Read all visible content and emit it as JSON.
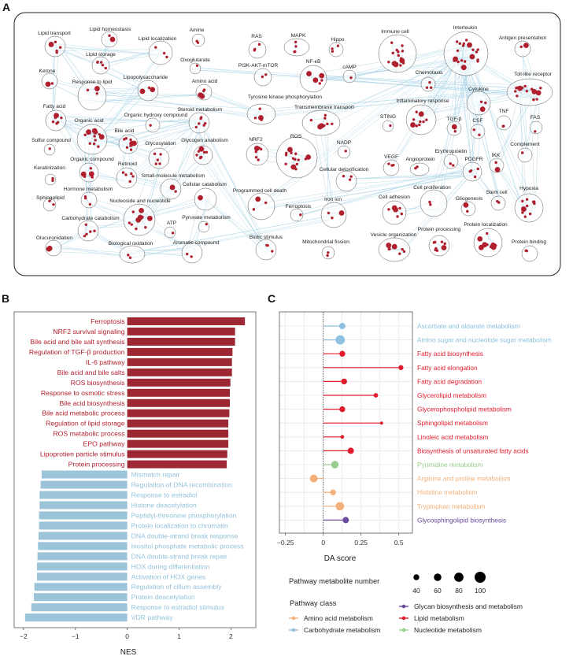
{
  "panel_labels": {
    "a": "A",
    "b": "B",
    "c": "C"
  },
  "panel_a": {
    "nodes": [
      "Lipid transport",
      "Lipid homeostasis",
      "Lipid localization",
      "Amine",
      "Lipid storage",
      "Oxoglutarate",
      "Ketone",
      "Response to lipid",
      "Lipopolysaccharide",
      "Amino acid",
      "Tyrosine kinase phosphorylation",
      "Fatty acid",
      "Organic acid",
      "Organic hydroxy compound",
      "Steroid metabolism",
      "Sulfur compound",
      "Bile acid",
      "Glycosylation",
      "Glycogen anabolism",
      "NRF2",
      "Organic compound",
      "Retinoid",
      "Keratinization",
      "Small-molecule metabolism",
      "Cellular catabolism",
      "Hormone metabolism",
      "Sphingolipid",
      "Nucleoside and nucleotide",
      "Programmed cell death",
      "Carbohydrate catabolism",
      "Pyruvate metabolism",
      "ATP",
      "Glucuronidation",
      "Biological oxidation",
      "Aromatic compound",
      "Biotic stimulus",
      "RAS",
      "PI3K-AKT-mTOR",
      "MAPK",
      "Hippo",
      "Immune cell",
      "Interleukin",
      "Antigen presentation",
      "NF-κB",
      "cAMP",
      "Chemotaxis",
      "Toll-like receptor",
      "Cytokine",
      "Transmembrane transport",
      "Inflammatory response",
      "STING",
      "TGF-β",
      "CSF",
      "TNF",
      "FAS",
      "ROS",
      "NADP",
      "Complement",
      "Erythropoietin",
      "IKK",
      "VEGF",
      "Angioprotein",
      "PDGFR",
      "Cellular detoxification",
      "Cell proliferation",
      "Stem cell",
      "Hypoxia",
      "Iron ion",
      "Ferroptosis",
      "Cell adhesion",
      "Gliogenesis",
      "Mitochondrial fission",
      "Vesicle organization",
      "Protein processing",
      "Protein localization",
      "Protein binding"
    ],
    "colors": {
      "node": "#b01f2e",
      "edge": "#a9d3e6",
      "cluster": "#555555"
    }
  },
  "chart_data": [
    {
      "type": "bar",
      "orientation": "horizontal",
      "xlabel": "NES",
      "xlim": [
        -2.18,
        2.48
      ],
      "xticks": [
        -2,
        -1,
        0,
        1,
        2
      ],
      "xtick_labels": [
        "−2",
        "−1",
        "0",
        "1",
        "2"
      ],
      "categories": [
        "Ferroptosis",
        "NRF2 survival signaling",
        "Bile acid and bile salt synthesis",
        "Regulation of TGF-β production",
        "IL-6  pathway",
        "Bile acid and bile salts",
        "ROS biosynthesis",
        "Response to osmotic stress",
        "Bile acid biosynthesis",
        "Bile acid metabolic process",
        "Regulation of lipid storage",
        "ROS metabolic process",
        "EPO pathway",
        "Lipoprotien particle stimulus",
        "Protein processing",
        "Mismatch repair",
        "Regulation of DNA recombination",
        "Response to estradiol",
        "Histone deacetylation",
        "Peptidyl-threonine phosphorylation",
        "Protein localization to chromatin",
        "DNA double-strand break response",
        "Inositol phosphate metabolic process",
        "DNA double-strand break repair",
        "HOX during differentiation",
        "Activation of HOX genes",
        "Regulation of cilium assembly",
        "Protein deacetylation",
        "Response to estradiol stimulus",
        "VDR pathway"
      ],
      "values": [
        2.27,
        2.08,
        2.08,
        2.03,
        2.02,
        2.02,
        1.99,
        1.98,
        1.98,
        1.97,
        1.95,
        1.95,
        1.95,
        1.93,
        1.92,
        -1.65,
        -1.67,
        -1.69,
        -1.69,
        -1.7,
        -1.7,
        -1.71,
        -1.72,
        -1.73,
        -1.74,
        -1.74,
        -1.79,
        -1.8,
        -1.85,
        -1.97
      ],
      "colors": {
        "positive_bar": "#9d2833",
        "negative_bar": "#9cc4d9",
        "positive_text": "#b3202d",
        "negative_text": "#93c2dc"
      }
    },
    {
      "type": "scatter",
      "subtype": "lollipop",
      "xlabel": "DA score",
      "xlim": [
        -0.29,
        0.59
      ],
      "xticks": [
        -0.25,
        0,
        0.25,
        0.5
      ],
      "xtick_labels": [
        "−0.25",
        "0",
        "0.25",
        "0.5"
      ],
      "categories": [
        "Ascorbate and aldarate metabolism",
        "Amino sugar and nucleotide sugar metabolism",
        "Fatty acid biosynthesis",
        "Fatty acid elongation",
        "Fatty acid degradation",
        "Glycerolipid metabolism",
        "Glycerophospholipid metabolism",
        "Sphingolipid metabolism",
        "Linoleic acid metabolism",
        "Biosynthesis of unsaturated fatty acids",
        "Pyrimidine metabolism",
        "Arginine and proline metabolism",
        "Histidine metabolism",
        "Tryptophan metabolism",
        "Glycosphingolipid biosynthesis"
      ],
      "values": [
        0.126,
        0.112,
        0.126,
        0.514,
        0.138,
        0.348,
        0.126,
        0.386,
        0.126,
        0.182,
        0.077,
        -0.063,
        0.065,
        0.11,
        0.149
      ],
      "metabolite_number": [
        46,
        80,
        40,
        30,
        40,
        25,
        40,
        8,
        15,
        45,
        58,
        63,
        40,
        70,
        45
      ],
      "class": [
        "carb",
        "carb",
        "lipid",
        "lipid",
        "lipid",
        "lipid",
        "lipid",
        "lipid",
        "lipid",
        "lipid",
        "nucleotide",
        "amino",
        "amino",
        "amino",
        "glycan"
      ],
      "size_legend": {
        "title": "Pathway metabolite number",
        "values": [
          40,
          60,
          80,
          100
        ],
        "labels": [
          "40",
          "60",
          "80",
          "100"
        ]
      },
      "class_legend": {
        "title": "Pathway class",
        "items": [
          {
            "key": "amino",
            "label": "Amino acid metabolism",
            "color": "#f3b07a"
          },
          {
            "key": "carb",
            "label": "Carbohydrate metabolism",
            "color": "#8ec0df"
          },
          {
            "key": "glycan",
            "label": "Glycan biosynthesis and metabolism",
            "color": "#6a4a9b"
          },
          {
            "key": "lipid",
            "label": "Lipid metabolism",
            "color": "#e01b2c"
          },
          {
            "key": "nucleotide",
            "label": "Nucleotide metabolism",
            "color": "#98cd8e"
          }
        ]
      }
    }
  ]
}
